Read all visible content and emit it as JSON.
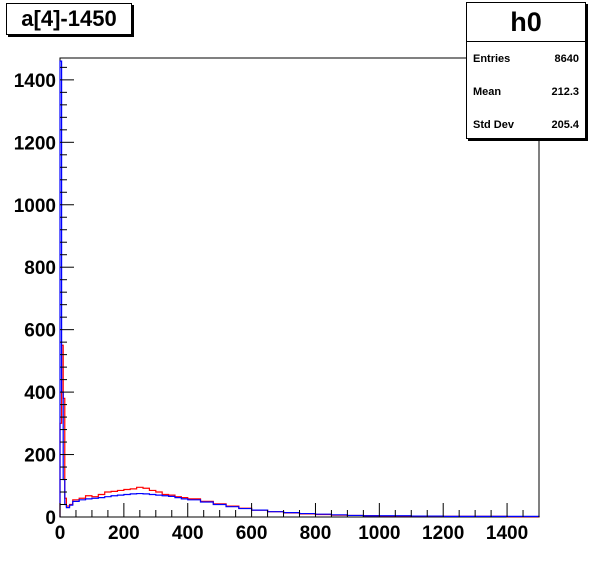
{
  "title": "a[4]-1450",
  "stats": {
    "name": "h0",
    "rows": [
      {
        "label": "Entries",
        "value": "8640"
      },
      {
        "label": "Mean",
        "value": "212.3"
      },
      {
        "label": "Std Dev",
        "value": "205.4"
      }
    ]
  },
  "colors": {
    "red_series": "#ff0000",
    "blue_series": "#0000ff",
    "axis": "#000000"
  },
  "chart_data": {
    "type": "line",
    "title": "a[4]-1450",
    "xlabel": "",
    "ylabel": "",
    "xlim": [
      0,
      1500
    ],
    "ylim": [
      0,
      1470
    ],
    "grid": false,
    "x_ticks": [
      "0",
      "200",
      "400",
      "600",
      "800",
      "1000",
      "1200",
      "1400"
    ],
    "y_ticks": [
      "0",
      "200",
      "400",
      "600",
      "800",
      "1000",
      "1200",
      "1400"
    ],
    "series": [
      {
        "color": "#ff0000",
        "x": [
          0,
          5,
          10,
          15,
          20,
          30,
          40,
          60,
          80,
          100,
          120,
          140,
          160,
          180,
          200,
          220,
          240,
          260,
          280,
          300,
          320,
          340,
          360,
          380,
          400,
          440,
          480,
          520,
          560,
          600,
          650,
          700,
          750,
          800,
          850,
          900,
          950,
          1000,
          1100,
          1200,
          1300,
          1400,
          1500
        ],
        "y": [
          300,
          550,
          380,
          60,
          35,
          40,
          55,
          60,
          68,
          65,
          72,
          80,
          82,
          85,
          88,
          90,
          95,
          92,
          85,
          80,
          72,
          70,
          65,
          62,
          58,
          50,
          42,
          35,
          28,
          22,
          17,
          13,
          10,
          8,
          6,
          5,
          4,
          3,
          3,
          2,
          2,
          1,
          1
        ]
      },
      {
        "color": "#0000ff",
        "x": [
          0,
          5,
          10,
          15,
          20,
          30,
          40,
          60,
          80,
          100,
          120,
          140,
          160,
          180,
          200,
          220,
          240,
          260,
          280,
          300,
          320,
          340,
          360,
          380,
          400,
          440,
          480,
          520,
          560,
          600,
          650,
          700,
          750,
          800,
          850,
          900,
          950,
          1000,
          1100,
          1200,
          1300,
          1400,
          1500
        ],
        "y": [
          1460,
          400,
          120,
          40,
          30,
          38,
          50,
          55,
          58,
          60,
          62,
          65,
          68,
          70,
          72,
          74,
          75,
          74,
          72,
          70,
          68,
          66,
          62,
          58,
          55,
          48,
          40,
          33,
          27,
          22,
          17,
          14,
          11,
          9,
          7,
          5,
          4,
          4,
          3,
          2,
          2,
          2,
          1
        ]
      }
    ]
  }
}
